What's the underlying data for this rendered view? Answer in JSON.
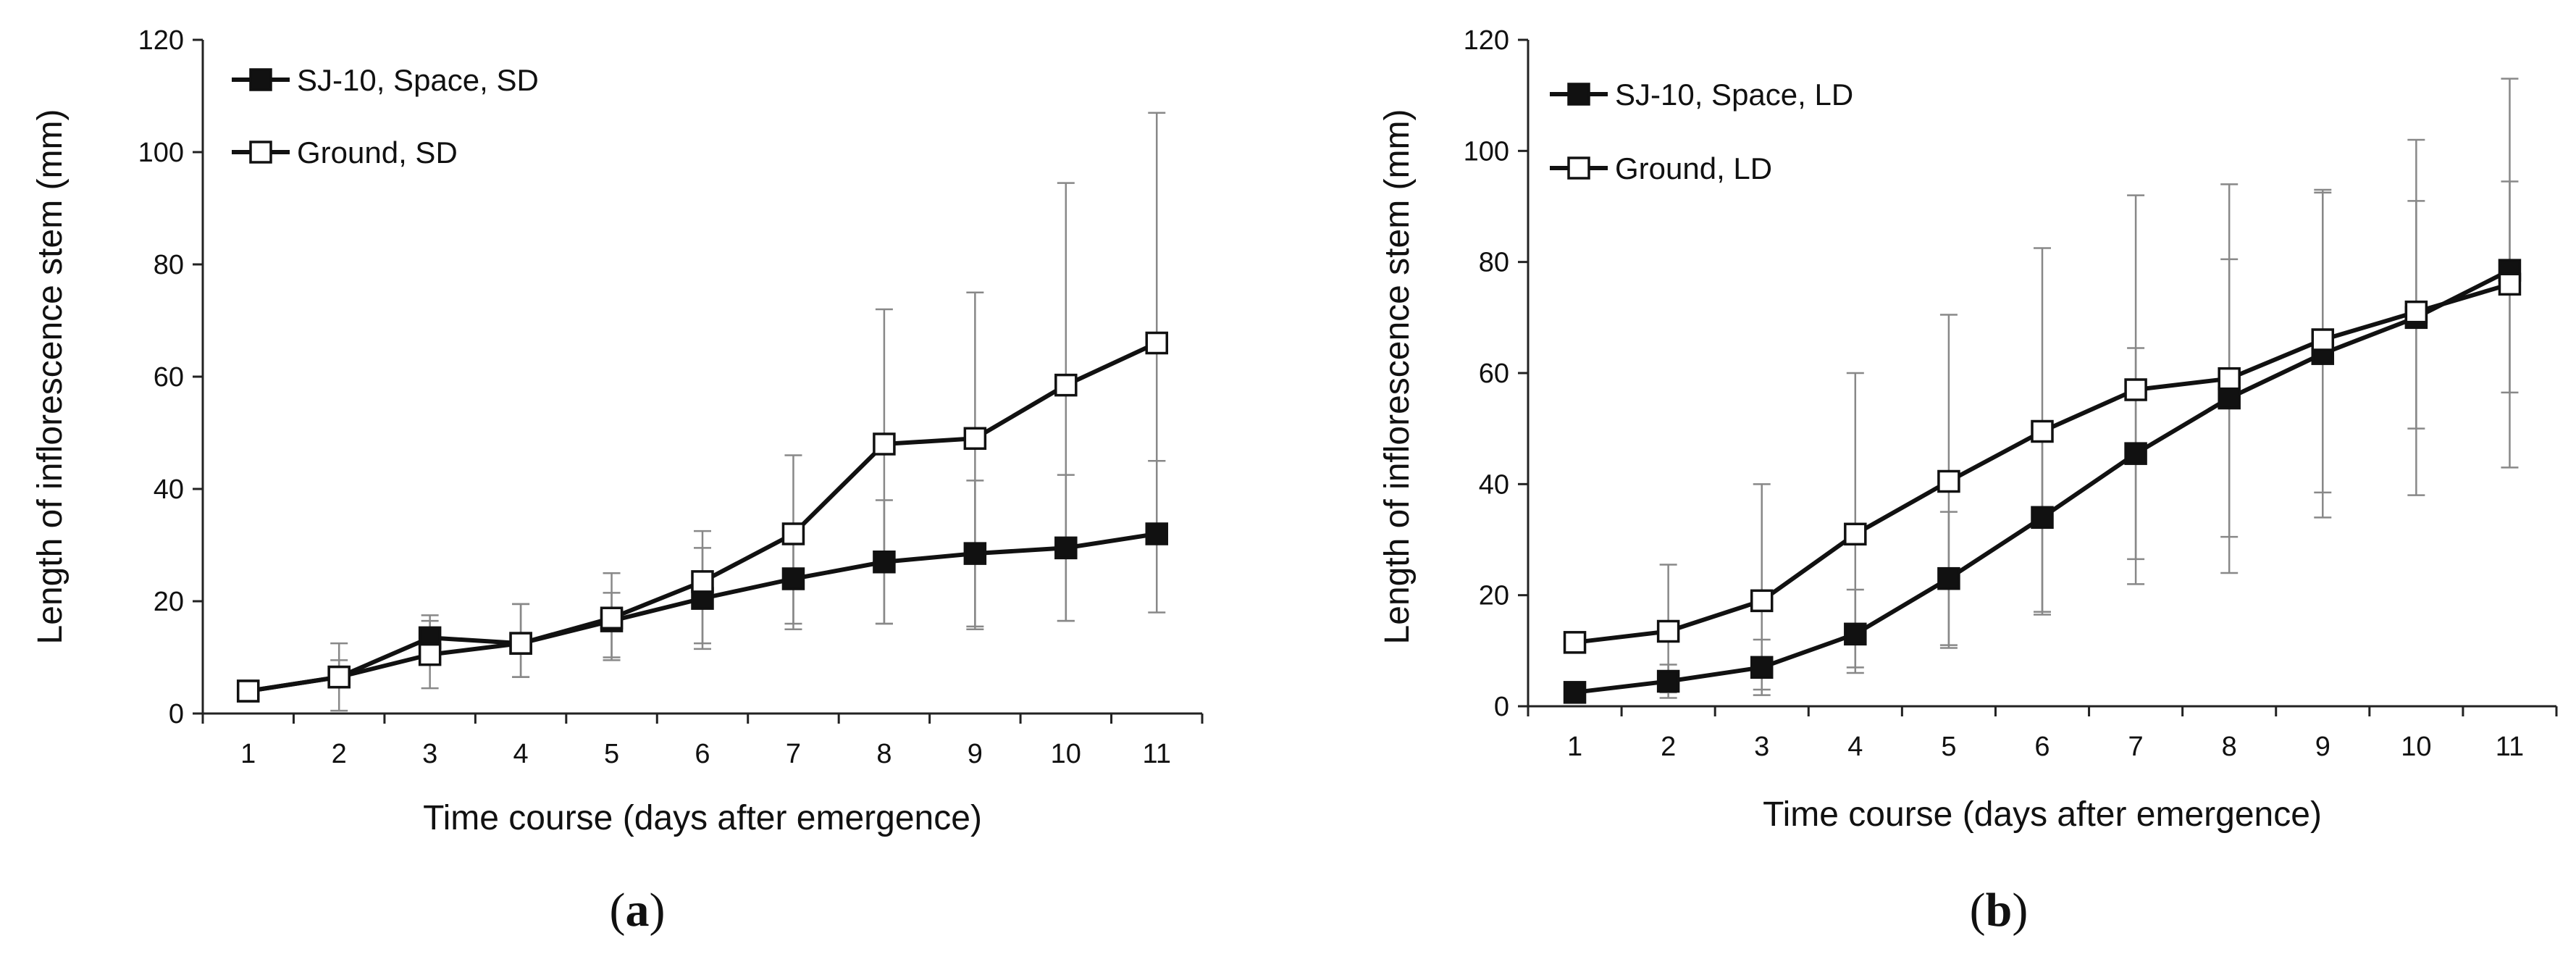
{
  "chart_data": [
    {
      "type": "line",
      "panel_label": "a",
      "xlabel": "Time course (days after emergence)",
      "ylabel": "Length of inflorescence stem (mm)",
      "ylim": [
        0,
        120
      ],
      "yticks": [
        0,
        20,
        40,
        60,
        80,
        100,
        120
      ],
      "x": [
        1,
        2,
        3,
        4,
        5,
        6,
        7,
        8,
        9,
        10,
        11
      ],
      "grid": false,
      "legend_position": "top-left",
      "series": [
        {
          "name": "SJ-10, Space, SD",
          "marker": "filled-square",
          "values": [
            4,
            6.5,
            13.5,
            12.5,
            16.5,
            20.5,
            24,
            27,
            28.5,
            29.5,
            32
          ],
          "err_low": [
            0,
            1,
            3,
            6,
            7,
            9,
            9,
            11,
            13,
            13,
            14
          ],
          "err_high": [
            0,
            3,
            4,
            7,
            5,
            9,
            9,
            11,
            13,
            13,
            13
          ]
        },
        {
          "name": "Ground, SD",
          "marker": "open-square",
          "values": [
            4,
            6.5,
            10.5,
            12.5,
            17,
            23.5,
            32,
            48,
            49,
            58.5,
            66
          ],
          "err_low": [
            0,
            6,
            6,
            6,
            7,
            11,
            16,
            32,
            34,
            42,
            21
          ],
          "err_high": [
            0,
            6,
            6,
            7,
            8,
            9,
            14,
            24,
            26,
            36,
            41
          ]
        }
      ]
    },
    {
      "type": "line",
      "panel_label": "b",
      "xlabel": "Time course (days after emergence)",
      "ylabel": "Length of inflorescence stem (mm)",
      "ylim": [
        0,
        120
      ],
      "yticks": [
        0,
        20,
        40,
        60,
        80,
        100,
        120
      ],
      "x": [
        1,
        2,
        3,
        4,
        5,
        6,
        7,
        8,
        9,
        10,
        11
      ],
      "grid": false,
      "legend_position": "top-left",
      "series": [
        {
          "name": "SJ-10, Space, LD",
          "marker": "filled-square",
          "values": [
            2.5,
            4.5,
            7,
            13,
            23,
            34,
            45.5,
            55.5,
            63.5,
            70,
            78.5
          ],
          "err_low": [
            0,
            3,
            5,
            7,
            12,
            17,
            19,
            25,
            25,
            20,
            22
          ],
          "err_high": [
            0,
            3,
            5,
            8,
            12,
            16,
            19,
            25,
            29,
            21,
            16
          ]
        },
        {
          "name": "Ground, LD",
          "marker": "open-square",
          "values": [
            11.5,
            13.5,
            19,
            31,
            40.5,
            49.5,
            57,
            59,
            66,
            71,
            76
          ],
          "err_low": [
            0,
            11,
            16,
            24,
            30,
            33,
            35,
            35,
            32,
            33,
            33
          ],
          "err_high": [
            0,
            12,
            21,
            29,
            30,
            33,
            35,
            35,
            27,
            31,
            37
          ]
        }
      ]
    }
  ]
}
